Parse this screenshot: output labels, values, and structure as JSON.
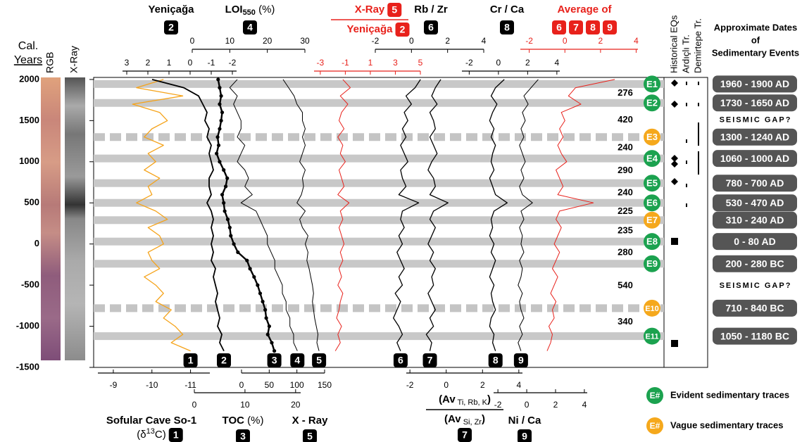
{
  "chart_data": {
    "type": "line",
    "ylabel": [
      "Cal.",
      "Years"
    ],
    "core_labels": [
      "RGB",
      "X-Ray"
    ],
    "ylim": [
      -1500,
      2025
    ],
    "yticks": [
      2000,
      1500,
      1000,
      500,
      0,
      -500,
      -1000,
      -1500
    ],
    "years": [
      2000,
      1900,
      1800,
      1700,
      1600,
      1500,
      1400,
      1300,
      1200,
      1100,
      1000,
      900,
      800,
      700,
      600,
      500,
      400,
      300,
      200,
      100,
      0,
      -100,
      -200,
      -300,
      -400,
      -500,
      -600,
      -700,
      -800,
      -900,
      -1000,
      -1100,
      -1200,
      -1300
    ],
    "tracks": [
      {
        "label": [
          [
            {
              "text": "Sofular Cave So-1"
            }
          ],
          [
            {
              "text": "(δ",
              "weight": "normal"
            },
            {
              "text": "13",
              "shift": "sup",
              "weight": "normal"
            },
            {
              "text": "C)",
              "weight": "normal"
            }
          ]
        ],
        "badges": [
          "1"
        ],
        "color": "#f5a31a",
        "line_width": 1.3,
        "xlim": [
          -8.6,
          -11.5
        ],
        "xticks": [
          -9,
          -10,
          -11
        ],
        "curve_badge": true,
        "values": [
          -10.3,
          -9.6,
          -10.8,
          -9.5,
          -10.2,
          -10.4,
          -10.0,
          -9.8,
          -10.3,
          -9.9,
          -10.1,
          -9.8,
          -10.2,
          -9.9,
          -10.0,
          -9.6,
          -10.1,
          -10.4,
          -9.9,
          -10.2,
          -10.3,
          -9.9,
          -10.0,
          -10.2,
          -9.8,
          -10.1,
          -10.3,
          -10.1,
          -10.5,
          -10.3,
          -10.6,
          -10.8,
          -10.5,
          -11.0
        ]
      },
      {
        "label": [
          [
            {
              "text": "Yeniçağa"
            }
          ]
        ],
        "badges": [
          "2"
        ],
        "color": "#000000",
        "line_width": 1.8,
        "xlim": [
          3.2,
          -2.2
        ],
        "xticks": [
          3,
          2,
          1,
          0,
          -1,
          -2
        ],
        "curve_badge": true,
        "values": [
          1.8,
          0.3,
          -0.4,
          -0.6,
          -0.8,
          -0.7,
          -0.9,
          -0.8,
          -1.0,
          -0.9,
          -1.0,
          -1.1,
          -0.9,
          -0.9,
          -1.0,
          -0.8,
          -1.0,
          -1.1,
          -1.0,
          -1.1,
          -1.0,
          -1.1,
          -1.0,
          -1.2,
          -1.1,
          -1.2,
          -1.3,
          -1.2,
          -1.3,
          -1.4,
          -1.3,
          -1.5,
          -1.4,
          -1.6
        ]
      },
      {
        "label": [
          [
            {
              "text": "TOC"
            },
            {
              "text": " (%)",
              "weight": "normal"
            }
          ]
        ],
        "badges": [
          "3"
        ],
        "color": "#000000",
        "line_width": 2.4,
        "markers": true,
        "xlim": [
          0,
          21
        ],
        "xticks": [
          0,
          10,
          20
        ],
        "curve_badge": true,
        "values": [
          4.7,
          5.0,
          5.3,
          5.0,
          5.5,
          5.3,
          5.0,
          4.6,
          4.8,
          4.4,
          5.0,
          5.8,
          6.5,
          6.2,
          5.5,
          5.8,
          6.0,
          6.6,
          7.0,
          7.2,
          7.8,
          8.6,
          10.4,
          11.0,
          11.8,
          12.5,
          13.0,
          13.5,
          14.0,
          14.2,
          14.8,
          14.5,
          15.3,
          15.8
        ]
      },
      {
        "label": [
          [
            {
              "text": "LOI"
            },
            {
              "text": "550",
              "shift": "sub"
            },
            {
              "text": " (%)",
              "weight": "normal"
            }
          ]
        ],
        "badges": [
          "4"
        ],
        "color": "#000000",
        "line_width": 1,
        "xlim": [
          0,
          30
        ],
        "xticks": [
          0,
          10,
          20,
          30
        ],
        "curve_badge": true,
        "values": [
          12,
          10,
          12,
          11,
          12,
          13,
          13,
          12,
          14,
          13,
          12,
          14,
          15,
          14,
          16,
          13,
          17,
          18,
          19,
          20,
          20,
          21,
          22,
          22,
          23,
          24,
          24,
          25,
          25,
          26,
          26,
          27,
          27,
          28
        ]
      },
      {
        "label": [
          [
            {
              "text": "X - Ray"
            }
          ]
        ],
        "badges": [
          "5"
        ],
        "color": "#000000",
        "line_width": 1,
        "xlim": [
          0,
          150
        ],
        "xticks": [
          0,
          50,
          100,
          150
        ],
        "curve_badge": true,
        "values": [
          75,
          85,
          95,
          100,
          110,
          110,
          115,
          110,
          115,
          110,
          105,
          115,
          110,
          112,
          108,
          100,
          115,
          105,
          110,
          120,
          115,
          120,
          118,
          122,
          125,
          128,
          130,
          128,
          130,
          132,
          135,
          138,
          136,
          140
        ]
      },
      {
        "label": [
          [
            {
              "text": "X-Ray"
            }
          ],
          [
            {
              "text": "Yeniçağa"
            }
          ]
        ],
        "badges": [
          "5",
          "2"
        ],
        "color": "#e8211b",
        "label_color": "#e8211b",
        "line_width": 1,
        "xlim": [
          -3.5,
          5
        ],
        "xticks": [
          -3,
          -1,
          1,
          3,
          5
        ],
        "values": [
          -1.2,
          -0.6,
          -1.4,
          -0.8,
          -1.3,
          -1.5,
          -1.1,
          -1.6,
          -1.2,
          -1.4,
          -1.0,
          -1.5,
          -1.3,
          -1.1,
          -1.6,
          -0.7,
          -1.4,
          -1.2,
          -1.5,
          -1.3,
          -1.1,
          -1.4,
          -1.2,
          -1.5,
          -1.3,
          -1.6,
          -1.2,
          -1.4,
          -1.5,
          -1.7,
          -1.3,
          -1.6,
          -1.4,
          -1.8
        ]
      },
      {
        "label": [
          [
            {
              "text": "Rb / Zr"
            }
          ]
        ],
        "badges": [
          "6"
        ],
        "color": "#000000",
        "line_width": 1.3,
        "xlim": [
          -2,
          4
        ],
        "xticks": [
          -2,
          0,
          2,
          4
        ],
        "curve_badge": true,
        "values": [
          0.5,
          0.2,
          -0.3,
          0.0,
          -0.4,
          -0.2,
          -0.5,
          -0.3,
          -0.6,
          -0.4,
          -0.2,
          -0.6,
          -0.5,
          -0.3,
          -0.7,
          0.4,
          -0.5,
          -0.6,
          -0.4,
          -0.7,
          -0.5,
          -0.8,
          -0.6,
          -0.4,
          -0.7,
          -0.5,
          -0.9,
          -0.6,
          -0.8,
          -1.0,
          -0.7,
          -0.5,
          -0.8,
          -0.6
        ]
      },
      {
        "label": [
          [
            {
              "text": "(Av"
            },
            {
              "text": " Ti, Rb, K",
              "shift": "sub",
              "weight": "normal"
            },
            {
              "text": ")"
            }
          ],
          [
            {
              "text": "(Av"
            },
            {
              "text": " Si, Zr",
              "shift": "sub",
              "weight": "normal"
            },
            {
              "text": ")"
            }
          ]
        ],
        "badges": [
          "7"
        ],
        "color": "#000000",
        "line_width": 1.3,
        "xlim": [
          -2.2,
          4.2
        ],
        "xticks": [
          -2,
          0,
          2,
          4
        ],
        "curve_badge": true,
        "values": [
          -0.3,
          -0.6,
          -0.8,
          -0.5,
          -0.9,
          -0.7,
          -0.6,
          -0.9,
          -0.7,
          -0.5,
          -0.8,
          -1.0,
          -0.7,
          -0.6,
          -0.9,
          0.1,
          -0.7,
          -0.9,
          -0.6,
          -0.8,
          -1.0,
          -0.7,
          -0.9,
          -0.6,
          -0.8,
          -0.7,
          -1.0,
          -0.8,
          -0.6,
          -0.9,
          -0.7,
          -1.1,
          -0.8,
          -0.9
        ]
      },
      {
        "label": [
          [
            {
              "text": "Cr / Ca"
            }
          ]
        ],
        "badges": [
          "8"
        ],
        "color": "#000000",
        "line_width": 1.3,
        "xlim": [
          -2.5,
          4.2
        ],
        "xticks": [
          -2,
          0,
          2,
          4
        ],
        "curve_badge": true,
        "values": [
          0.4,
          -0.2,
          -0.5,
          -0.1,
          -0.4,
          -0.6,
          -0.3,
          -0.5,
          -0.2,
          -0.4,
          -0.5,
          -0.3,
          -0.6,
          -0.4,
          -0.2,
          0.6,
          -0.3,
          -0.5,
          -0.4,
          -0.6,
          -0.3,
          -0.5,
          -0.2,
          -0.4,
          -0.6,
          -0.3,
          -0.5,
          -0.4,
          -0.2,
          -0.5,
          -0.6,
          -0.3,
          -0.4,
          -0.2
        ]
      },
      {
        "label": [
          [
            {
              "text": "Ni / Ca"
            }
          ]
        ],
        "badges": [
          "9"
        ],
        "color": "#000000",
        "line_width": 1,
        "xlim": [
          -2.3,
          4.2
        ],
        "xticks": [
          -2,
          0,
          2,
          4
        ],
        "curve_badge": true,
        "values": [
          0.8,
          0.3,
          -0.2,
          0.1,
          -0.3,
          -0.1,
          -0.4,
          -0.2,
          -0.5,
          -0.3,
          -0.1,
          -0.4,
          -0.2,
          -0.5,
          -0.3,
          0.4,
          -0.4,
          -0.2,
          -0.5,
          -0.3,
          -0.4,
          -0.2,
          -0.5,
          -0.3,
          -0.4,
          -0.6,
          -0.3,
          -0.5,
          -0.4,
          -0.2,
          -0.5,
          -0.3,
          -0.6,
          -0.4
        ]
      },
      {
        "label": [
          [
            {
              "text": "Average of"
            }
          ]
        ],
        "badges": [
          "6",
          "7",
          "8",
          "9"
        ],
        "color": "#e8211b",
        "label_color": "#e8211b",
        "line_width": 1,
        "xlim": [
          -2.5,
          4.1
        ],
        "xticks": [
          -2,
          0,
          2,
          4
        ],
        "values": [
          2.8,
          0.6,
          0.2,
          0.9,
          -0.2,
          0.0,
          -0.3,
          -0.1,
          -0.4,
          -0.2,
          0.1,
          -0.5,
          -0.3,
          -0.1,
          -0.4,
          1.6,
          -0.3,
          -0.5,
          -0.2,
          -0.4,
          -0.6,
          -0.3,
          -0.5,
          -0.7,
          -0.4,
          -0.6,
          -0.8,
          -0.5,
          -0.7,
          -0.6,
          -0.9,
          -0.7,
          -0.8,
          -1.0
        ]
      }
    ],
    "events": [
      {
        "id": "E1",
        "kind": "evident",
        "year": 1945,
        "band": "solid",
        "dates": "1960 - 1900 AD"
      },
      {
        "id": "E2",
        "kind": "evident",
        "year": 1715,
        "band": "solid",
        "dates": "1730 - 1650 AD",
        "gap_after": "SEISMIC GAP?"
      },
      {
        "id": "E3",
        "kind": "vague",
        "year": 1300,
        "band": "dashed",
        "dates": "1300 - 1240 AD"
      },
      {
        "id": "E4",
        "kind": "evident",
        "year": 1040,
        "band": "solid",
        "dates": "1060 - 1000 AD"
      },
      {
        "id": "E5",
        "kind": "evident",
        "year": 740,
        "band": "solid",
        "dates": "780 - 700 AD"
      },
      {
        "id": "E6",
        "kind": "evident",
        "year": 500,
        "band": "solid",
        "dates": "530 - 470 AD"
      },
      {
        "id": "E7",
        "kind": "vague",
        "year": 290,
        "band": "solid",
        "dates": "310 - 240 AD"
      },
      {
        "id": "E8",
        "kind": "evident",
        "year": 30,
        "band": "solid",
        "dates": "0 - 80 AD"
      },
      {
        "id": "E9",
        "kind": "evident",
        "year": -240,
        "band": "solid",
        "dates": "200 - 280 BC",
        "gap_after": "SEISMIC GAP?"
      },
      {
        "id": "E10",
        "kind": "vague",
        "year": -780,
        "band": "dashed",
        "dates": "710 - 840 BC"
      },
      {
        "id": "E11",
        "kind": "evident",
        "year": -1120,
        "band": "solid",
        "dates": "1050 - 1180 BC"
      }
    ],
    "intervals": [
      276,
      420,
      240,
      290,
      240,
      225,
      235,
      280,
      540,
      340
    ],
    "kind_colors": {
      "evident": "#1ba24f",
      "vague": "#f5a81c"
    },
    "dates_title": [
      "Approximate Dates",
      "of",
      "Sedimentary Events"
    ],
    "eq_columns": [
      {
        "label": "Historical EQs",
        "diamonds": [
          1957,
          1700,
          1041,
          973,
          759
        ],
        "squares": [
          32,
          -1209
        ]
      },
      {
        "label": "Ardıçlı Tr.",
        "ranges": [
          [
            1974,
            1932
          ],
          [
            1717,
            1674
          ],
          [
            1272,
            1229
          ],
          [
            1015,
            973
          ],
          [
            733,
            690
          ],
          [
            493,
            450
          ]
        ]
      },
      {
        "label": "Demirtepe Tr.",
        "ranges": [
          [
            1974,
            1932
          ],
          [
            1717,
            1674
          ],
          [
            1477,
            1195
          ],
          [
            1127,
            844
          ]
        ]
      }
    ],
    "legend": [
      {
        "symbol": "E#",
        "kind": "evident",
        "label": "Evident sedimentary traces"
      },
      {
        "symbol": "E#",
        "kind": "vague",
        "label": "Vague sedimentary traces"
      }
    ]
  }
}
